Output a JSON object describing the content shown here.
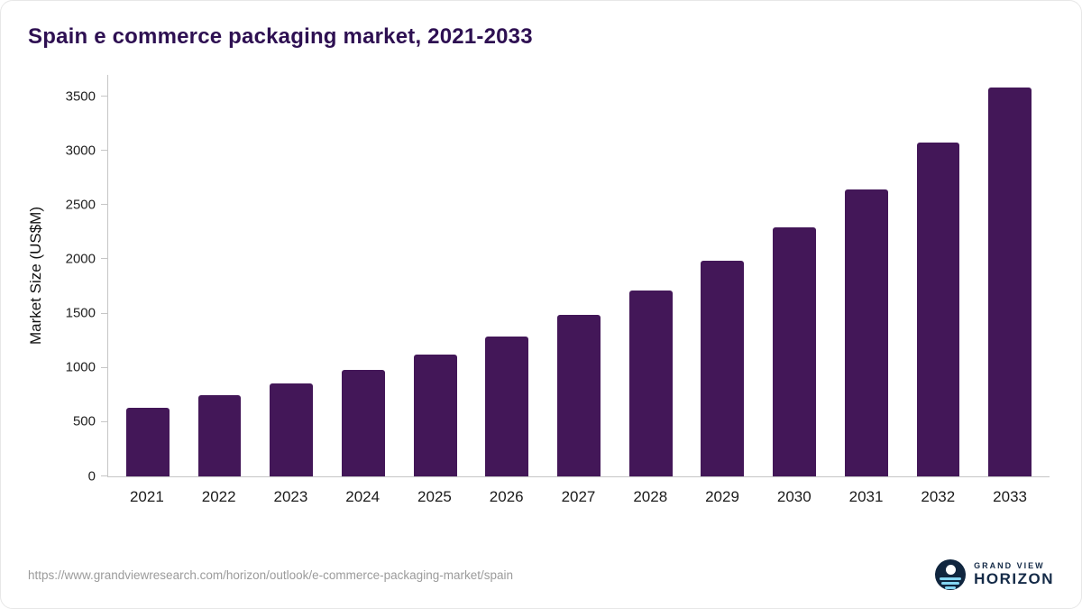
{
  "title": "Spain e commerce packaging market, 2021-2033",
  "source_url": "https://www.grandviewresearch.com/horizon/outlook/e-commerce-packaging-market/spain",
  "logo": {
    "top": "GRAND VIEW",
    "bottom": "HORIZON"
  },
  "colors": {
    "bar": "#431758",
    "title": "#2e1052",
    "axis": "#c6c6c6",
    "logo_navy": "#10263f",
    "logo_blue": "#85d6f2"
  },
  "chart_data": {
    "type": "bar",
    "title": "Spain e commerce packaging market, 2021-2033",
    "categories": [
      "2021",
      "2022",
      "2023",
      "2024",
      "2025",
      "2026",
      "2027",
      "2028",
      "2029",
      "2030",
      "2031",
      "2032",
      "2033"
    ],
    "values": [
      630,
      745,
      855,
      985,
      1120,
      1285,
      1490,
      1715,
      1985,
      2295,
      2645,
      3080,
      3580
    ],
    "xlabel": "",
    "ylabel": "Market Size (US$M)",
    "ylim": [
      0,
      3700
    ],
    "yticks": [
      0,
      500,
      1000,
      1500,
      2000,
      2500,
      3000,
      3500
    ],
    "grid": false,
    "legend": false,
    "bar_color": "#431758"
  }
}
